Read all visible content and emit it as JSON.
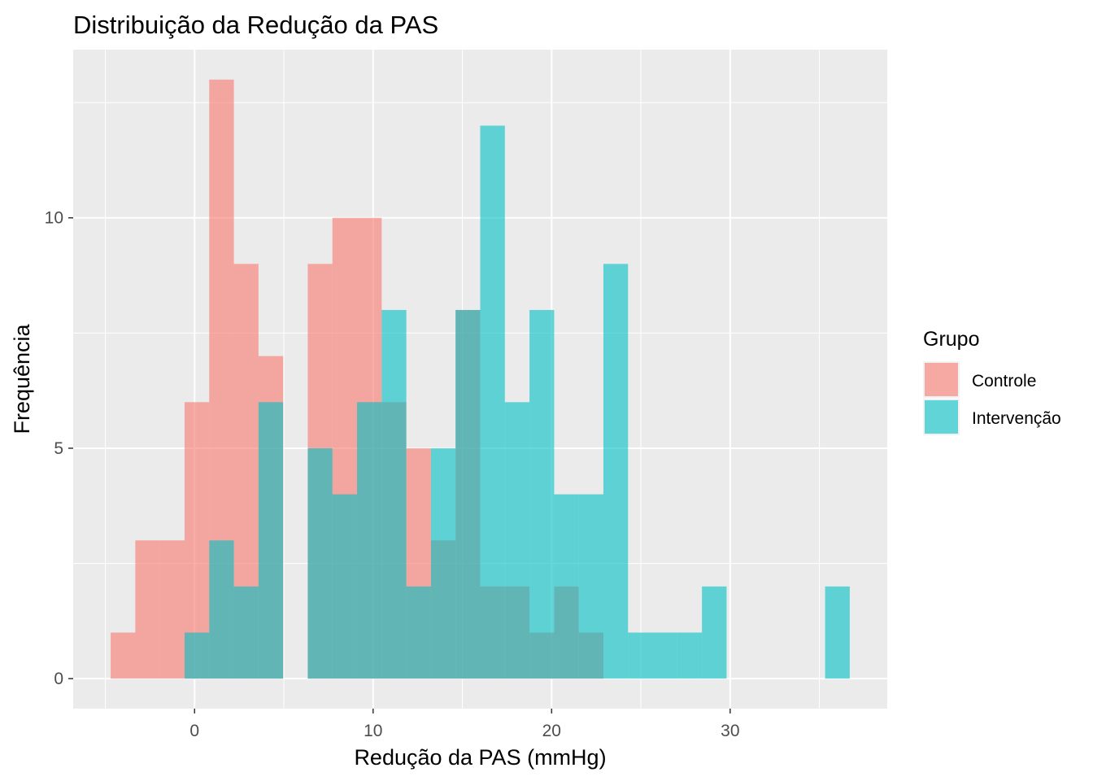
{
  "chart_data": {
    "type": "bar",
    "title": "Distribuição da Redução da PAS",
    "xlabel": "Redução da PAS (mmHg)",
    "ylabel": "Frequência",
    "xlim": [
      -6.8,
      38.8
    ],
    "ylim": [
      -0.65,
      13.65
    ],
    "x_ticks": [
      0,
      10,
      20,
      30
    ],
    "y_ticks": [
      0,
      5,
      10
    ],
    "bin_width": 1.38,
    "bin_start": -4.7,
    "grid": true,
    "legend": {
      "title": "Grupo",
      "position": "right",
      "items": [
        {
          "label": "Controle",
          "color": "#F8766D"
        },
        {
          "label": "Intervenção",
          "color": "#00BFC4"
        }
      ]
    },
    "series": [
      {
        "name": "Controle",
        "color": "#F8766D",
        "counts": [
          1,
          3,
          3,
          6,
          13,
          9,
          7,
          0,
          9,
          10,
          10,
          6,
          5,
          3,
          8,
          2,
          2,
          1,
          2,
          1,
          0,
          0,
          0,
          0,
          0,
          0,
          0,
          0,
          0,
          0
        ]
      },
      {
        "name": "Intervenção",
        "color": "#00BFC4",
        "counts": [
          0,
          0,
          0,
          1,
          3,
          2,
          6,
          0,
          5,
          4,
          6,
          8,
          2,
          5,
          8,
          12,
          6,
          8,
          4,
          4,
          9,
          1,
          1,
          1,
          2,
          0,
          0,
          0,
          0,
          2
        ]
      }
    ]
  }
}
